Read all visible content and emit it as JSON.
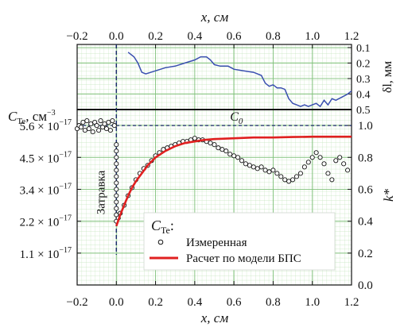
{
  "chart_data": [
    {
      "panel": "top",
      "type": "line",
      "xlabel_top": "x, см",
      "ylabel_right": "δl, мм",
      "x_ticks": [
        "−0.2",
        "0.0",
        "0.2",
        "0.4",
        "0.6",
        "0.8",
        "1.0",
        "1.2"
      ],
      "y_ticks": [
        "0.1",
        "0.2",
        "0.3",
        "0.4",
        "0.5"
      ],
      "xlim": [
        -0.2,
        1.2
      ],
      "ylim": [
        0.5,
        0.08
      ],
      "series": [
        {
          "color": "#3a4fb0",
          "x": [
            0.06,
            0.09,
            0.11,
            0.13,
            0.15,
            0.2,
            0.25,
            0.3,
            0.35,
            0.4,
            0.43,
            0.46,
            0.48,
            0.5,
            0.53,
            0.57,
            0.6,
            0.65,
            0.7,
            0.74,
            0.76,
            0.78,
            0.8,
            0.82,
            0.84,
            0.86,
            0.88,
            0.9,
            0.92,
            0.94,
            0.96,
            0.98,
            1.0,
            1.02,
            1.04,
            1.06,
            1.08,
            1.1,
            1.12,
            1.15,
            1.18,
            1.2
          ],
          "y": [
            0.13,
            0.16,
            0.2,
            0.26,
            0.27,
            0.25,
            0.23,
            0.22,
            0.2,
            0.18,
            0.16,
            0.16,
            0.18,
            0.21,
            0.22,
            0.22,
            0.24,
            0.25,
            0.26,
            0.28,
            0.33,
            0.35,
            0.34,
            0.36,
            0.36,
            0.37,
            0.43,
            0.46,
            0.47,
            0.48,
            0.47,
            0.48,
            0.47,
            0.46,
            0.48,
            0.44,
            0.47,
            0.43,
            0.44,
            0.42,
            0.4,
            0.38
          ]
        }
      ]
    },
    {
      "panel": "bottom",
      "type": "scatter",
      "xlabel": "x, см",
      "ylabel_left": "C_Te, см^−3",
      "ylabel_right": "k*",
      "x_ticks": [
        "−0.2",
        "0.0",
        "0.2",
        "0.4",
        "0.6",
        "0.8",
        "1.0",
        "1.2"
      ],
      "y_ticks_left": [
        "5.6 × 10^−17",
        "4.5 × 10^−17",
        "3.4 × 10^−17",
        "2.2 × 10^−17",
        "1.1 × 10^−17"
      ],
      "y_ticks_left_values": [
        1.0,
        0.8,
        0.6,
        0.4,
        0.2
      ],
      "y_ticks_right": [
        "1.0",
        "0.8",
        "0.6",
        "0.4",
        "0.2",
        "0.0"
      ],
      "xlim": [
        -0.2,
        1.2
      ],
      "ylim_right": [
        0.0,
        1.1
      ],
      "annotations": {
        "c0_label": "C",
        "c0_sub": "0",
        "seed_label": "Затравка"
      },
      "legend": {
        "title": "C",
        "title_sub": "Te",
        "title_suffix": ":",
        "items": [
          {
            "label": "Измеренная",
            "marker": "open-circle"
          },
          {
            "label": "Расчет по модели БПС",
            "color": "#e02020"
          }
        ]
      },
      "reference_line_k": 1.0,
      "seed_x": 0.0,
      "series": [
        {
          "name": "Измеренная",
          "marker": "open-circle",
          "x": [
            -0.2,
            -0.19,
            -0.18,
            -0.17,
            -0.16,
            -0.15,
            -0.14,
            -0.13,
            -0.12,
            -0.11,
            -0.1,
            -0.09,
            -0.08,
            -0.07,
            -0.06,
            -0.05,
            -0.04,
            -0.03,
            -0.02,
            -0.01,
            0.0,
            0.0,
            0.0,
            0.0,
            0.0,
            0.0,
            0.0,
            0.0,
            0.0,
            0.0,
            0.0,
            0.0,
            0.0,
            0.01,
            0.02,
            0.04,
            0.06,
            0.08,
            0.1,
            0.12,
            0.14,
            0.16,
            0.18,
            0.2,
            0.22,
            0.24,
            0.26,
            0.28,
            0.3,
            0.32,
            0.34,
            0.36,
            0.38,
            0.4,
            0.42,
            0.44,
            0.46,
            0.48,
            0.5,
            0.52,
            0.54,
            0.56,
            0.58,
            0.6,
            0.62,
            0.64,
            0.66,
            0.68,
            0.7,
            0.72,
            0.74,
            0.76,
            0.78,
            0.8,
            0.82,
            0.84,
            0.86,
            0.88,
            0.9,
            0.92,
            0.94,
            0.96,
            0.98,
            1.0,
            1.02,
            1.04,
            1.06,
            1.08,
            1.1,
            1.12,
            1.14,
            1.16,
            1.18
          ],
          "y": [
            0.98,
            1.0,
            0.99,
            1.02,
            0.97,
            1.03,
            0.98,
            1.01,
            0.96,
            1.02,
            1.0,
            0.97,
            1.03,
            0.99,
            1.01,
            0.98,
            1.02,
            0.97,
            1.03,
            1.0,
            0.88,
            0.84,
            0.8,
            0.76,
            0.72,
            0.68,
            0.64,
            0.6,
            0.56,
            0.52,
            0.48,
            0.44,
            0.4,
            0.42,
            0.45,
            0.5,
            0.56,
            0.61,
            0.66,
            0.7,
            0.73,
            0.75,
            0.78,
            0.81,
            0.83,
            0.85,
            0.86,
            0.87,
            0.88,
            0.89,
            0.9,
            0.9,
            0.91,
            0.92,
            0.91,
            0.91,
            0.9,
            0.89,
            0.88,
            0.86,
            0.85,
            0.84,
            0.82,
            0.81,
            0.8,
            0.78,
            0.76,
            0.75,
            0.74,
            0.73,
            0.74,
            0.72,
            0.71,
            0.72,
            0.7,
            0.68,
            0.66,
            0.65,
            0.66,
            0.68,
            0.7,
            0.74,
            0.77,
            0.8,
            0.83,
            0.8,
            0.76,
            0.7,
            0.66,
            0.78,
            0.8,
            0.76,
            0.72
          ]
        },
        {
          "name": "Расчет по модели БПС",
          "color": "#e02020",
          "x": [
            0.0,
            0.02,
            0.04,
            0.06,
            0.08,
            0.1,
            0.13,
            0.16,
            0.2,
            0.25,
            0.3,
            0.35,
            0.4,
            0.45,
            0.5,
            0.6,
            0.7,
            0.8,
            0.9,
            1.0,
            1.1,
            1.2
          ],
          "y": [
            0.37,
            0.44,
            0.5,
            0.56,
            0.61,
            0.65,
            0.7,
            0.75,
            0.8,
            0.84,
            0.87,
            0.89,
            0.9,
            0.91,
            0.915,
            0.92,
            0.925,
            0.925,
            0.928,
            0.93,
            0.93,
            0.93
          ]
        }
      ]
    }
  ]
}
